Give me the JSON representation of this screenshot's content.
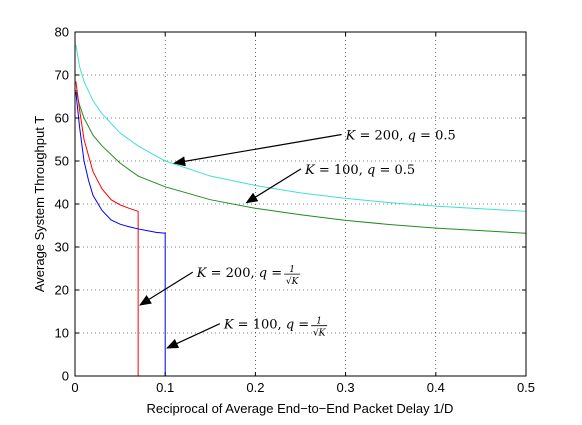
{
  "chart_data": {
    "type": "line",
    "title": "",
    "xlabel": "Reciprocal of Average End−to−End Packet Delay 1/D",
    "ylabel": "Average System Throughput T",
    "xlim": [
      0,
      0.5
    ],
    "ylim": [
      0,
      80
    ],
    "x_ticks": [
      "0",
      "0.1",
      "0.2",
      "0.3",
      "0.4",
      "0.5"
    ],
    "y_ticks": [
      "0",
      "10",
      "20",
      "30",
      "40",
      "50",
      "60",
      "70",
      "80"
    ],
    "grid": true,
    "series": [
      {
        "label": "K = 200, q = 0.5",
        "color": "#40e0d0",
        "points": [
          [
            0.001,
            77
          ],
          [
            0.005,
            72
          ],
          [
            0.01,
            68.5
          ],
          [
            0.02,
            64
          ],
          [
            0.03,
            61
          ],
          [
            0.05,
            56.5
          ],
          [
            0.07,
            53.5
          ],
          [
            0.1,
            50
          ],
          [
            0.15,
            46.5
          ],
          [
            0.2,
            44.3
          ],
          [
            0.25,
            42.6
          ],
          [
            0.3,
            41.3
          ],
          [
            0.35,
            40.3
          ],
          [
            0.4,
            39.5
          ],
          [
            0.45,
            38.9
          ],
          [
            0.5,
            38.3
          ],
          [
            0.5,
            0
          ]
        ]
      },
      {
        "label": "K = 100, q = 0.5",
        "color": "#228b22",
        "points": [
          [
            0.001,
            66.5
          ],
          [
            0.005,
            63
          ],
          [
            0.01,
            60
          ],
          [
            0.02,
            56
          ],
          [
            0.03,
            53.5
          ],
          [
            0.05,
            49.5
          ],
          [
            0.07,
            46.5
          ],
          [
            0.1,
            44
          ],
          [
            0.15,
            41
          ],
          [
            0.2,
            39
          ],
          [
            0.25,
            37.5
          ],
          [
            0.3,
            36.2
          ],
          [
            0.35,
            35.2
          ],
          [
            0.4,
            34.4
          ],
          [
            0.45,
            33.8
          ],
          [
            0.5,
            33.2
          ]
        ]
      },
      {
        "label": "K = 200, q = 1/√K",
        "color": "#ff0000",
        "points": [
          [
            0.001,
            68.5
          ],
          [
            0.005,
            62
          ],
          [
            0.01,
            55
          ],
          [
            0.02,
            47.5
          ],
          [
            0.03,
            43.5
          ],
          [
            0.04,
            41
          ],
          [
            0.05,
            39.8
          ],
          [
            0.06,
            39
          ],
          [
            0.07,
            38.3
          ],
          [
            0.07,
            0
          ]
        ]
      },
      {
        "label": "K = 100, q = 1/√K",
        "color": "#0000ff",
        "points": [
          [
            0.001,
            66
          ],
          [
            0.005,
            58
          ],
          [
            0.01,
            50
          ],
          [
            0.015,
            45.5
          ],
          [
            0.02,
            42
          ],
          [
            0.03,
            38.5
          ],
          [
            0.04,
            36.3
          ],
          [
            0.05,
            35.3
          ],
          [
            0.06,
            34.7
          ],
          [
            0.07,
            34.2
          ],
          [
            0.08,
            33.8
          ],
          [
            0.09,
            33.4
          ],
          [
            0.1,
            33.2
          ],
          [
            0.1,
            0
          ]
        ]
      }
    ],
    "annotations": [
      {
        "K": "200",
        "q": "0.5",
        "fraction": false,
        "text_at": [
          0.3,
          55
        ],
        "arrow_to": [
          0.11,
          49.5
        ]
      },
      {
        "K": "100",
        "q": "0.5",
        "fraction": false,
        "text_at": [
          0.255,
          47
        ],
        "arrow_to": [
          0.19,
          40.3
        ]
      },
      {
        "K": "200",
        "q": "1/√K",
        "fraction": true,
        "numerator": "1",
        "denominator": "√K",
        "text_at": [
          0.135,
          23
        ],
        "arrow_to": [
          0.072,
          16.5
        ]
      },
      {
        "K": "100",
        "q": "1/√K",
        "fraction": true,
        "numerator": "1",
        "denominator": "√K",
        "text_at": [
          0.165,
          11
        ],
        "arrow_to": [
          0.102,
          6.5
        ]
      }
    ]
  }
}
